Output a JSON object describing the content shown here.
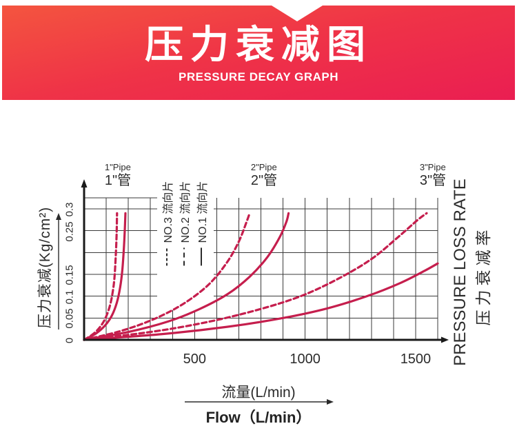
{
  "banner": {
    "title": "压力衰减图",
    "subtitle": "PRESSURE DECAY GRAPH"
  },
  "chart_data": {
    "type": "line",
    "title": "压力衰减图 (Pressure Decay Graph)",
    "xlabel_zh": "流量(L/min)",
    "xlabel_en": "Flow（L/min）",
    "ylabel_left": "压力衰减(Kg/cm²)",
    "ylabel_right_en": "PRESSURE LOSS RATE",
    "ylabel_right_zh": "压力衰减率",
    "xlim": [
      0,
      1600
    ],
    "ylim": [
      0,
      0.3
    ],
    "grid": {
      "on": true,
      "x_step": 100,
      "y_step": 0.05
    },
    "xticks": [
      {
        "value": 500,
        "label": "500"
      },
      {
        "value": 1000,
        "label": "1000"
      },
      {
        "value": 1500,
        "label": "1500"
      }
    ],
    "yticks": [
      {
        "value": 0,
        "label": "0"
      },
      {
        "value": 0.05,
        "label": "0.05"
      },
      {
        "value": 0.1,
        "label": "0.1"
      },
      {
        "value": 0.15,
        "label": "0.15"
      },
      {
        "value": 0.25,
        "label": "0.25"
      },
      {
        "value": 0.3,
        "label": "0.3"
      }
    ],
    "legend": [
      {
        "label": "NO.3 流向片",
        "style": "dotted"
      },
      {
        "label": "NO.2 流向片",
        "style": "dashed"
      },
      {
        "label": "NO.1 流向片",
        "style": "solid"
      }
    ],
    "legend_position": "inside-top-left, vertical text",
    "annotations": [
      {
        "en": "1\"Pipe",
        "zh": "1\"管",
        "x": 153
      },
      {
        "en": "2\"Pipe",
        "zh": "2\"管",
        "x": 814
      },
      {
        "en": "3\"Pipe",
        "zh": "3\"管",
        "x": 1578
      }
    ],
    "line_color": "#c51e4d",
    "series": [
      {
        "name": "1\" pipe — dashed (流向片 NO.2/NO.3)",
        "style": "dashed",
        "points": [
          [
            0,
            0
          ],
          [
            40,
            0.013
          ],
          [
            70,
            0.028
          ],
          [
            95,
            0.048
          ],
          [
            115,
            0.075
          ],
          [
            128,
            0.105
          ],
          [
            137,
            0.14
          ],
          [
            143,
            0.19
          ],
          [
            147,
            0.24
          ],
          [
            149,
            0.29
          ]
        ]
      },
      {
        "name": "1\" pipe — solid (流向片 NO.1)",
        "style": "solid",
        "points": [
          [
            0,
            0
          ],
          [
            55,
            0.015
          ],
          [
            95,
            0.033
          ],
          [
            125,
            0.055
          ],
          [
            148,
            0.085
          ],
          [
            163,
            0.12
          ],
          [
            173,
            0.16
          ],
          [
            180,
            0.21
          ],
          [
            184,
            0.25
          ],
          [
            187,
            0.29
          ]
        ]
      },
      {
        "name": "2\" pipe — dashed (流向片 NO.2/NO.3)",
        "style": "dashed",
        "points": [
          [
            0,
            0
          ],
          [
            150,
            0.018
          ],
          [
            280,
            0.04
          ],
          [
            400,
            0.068
          ],
          [
            500,
            0.1
          ],
          [
            580,
            0.135
          ],
          [
            650,
            0.18
          ],
          [
            700,
            0.225
          ],
          [
            735,
            0.27
          ],
          [
            749,
            0.29
          ]
        ]
      },
      {
        "name": "2\" pipe — solid (流向片 NO.1)",
        "style": "solid",
        "points": [
          [
            0,
            0
          ],
          [
            200,
            0.018
          ],
          [
            380,
            0.042
          ],
          [
            520,
            0.07
          ],
          [
            650,
            0.105
          ],
          [
            750,
            0.145
          ],
          [
            830,
            0.19
          ],
          [
            885,
            0.235
          ],
          [
            915,
            0.27
          ],
          [
            925,
            0.29
          ]
        ]
      },
      {
        "name": "3\" pipe — dashed (流向片 NO.2/NO.3)",
        "style": "dashed",
        "points": [
          [
            0,
            0
          ],
          [
            300,
            0.018
          ],
          [
            550,
            0.04
          ],
          [
            780,
            0.068
          ],
          [
            980,
            0.1
          ],
          [
            1150,
            0.14
          ],
          [
            1300,
            0.185
          ],
          [
            1420,
            0.235
          ],
          [
            1510,
            0.275
          ],
          [
            1550,
            0.29
          ]
        ]
      },
      {
        "name": "3\" pipe — solid (流向片 NO.1)",
        "style": "solid",
        "points": [
          [
            0,
            0
          ],
          [
            350,
            0.013
          ],
          [
            650,
            0.03
          ],
          [
            900,
            0.05
          ],
          [
            1100,
            0.072
          ],
          [
            1280,
            0.1
          ],
          [
            1430,
            0.13
          ],
          [
            1540,
            0.158
          ],
          [
            1600,
            0.175
          ]
        ]
      }
    ]
  }
}
